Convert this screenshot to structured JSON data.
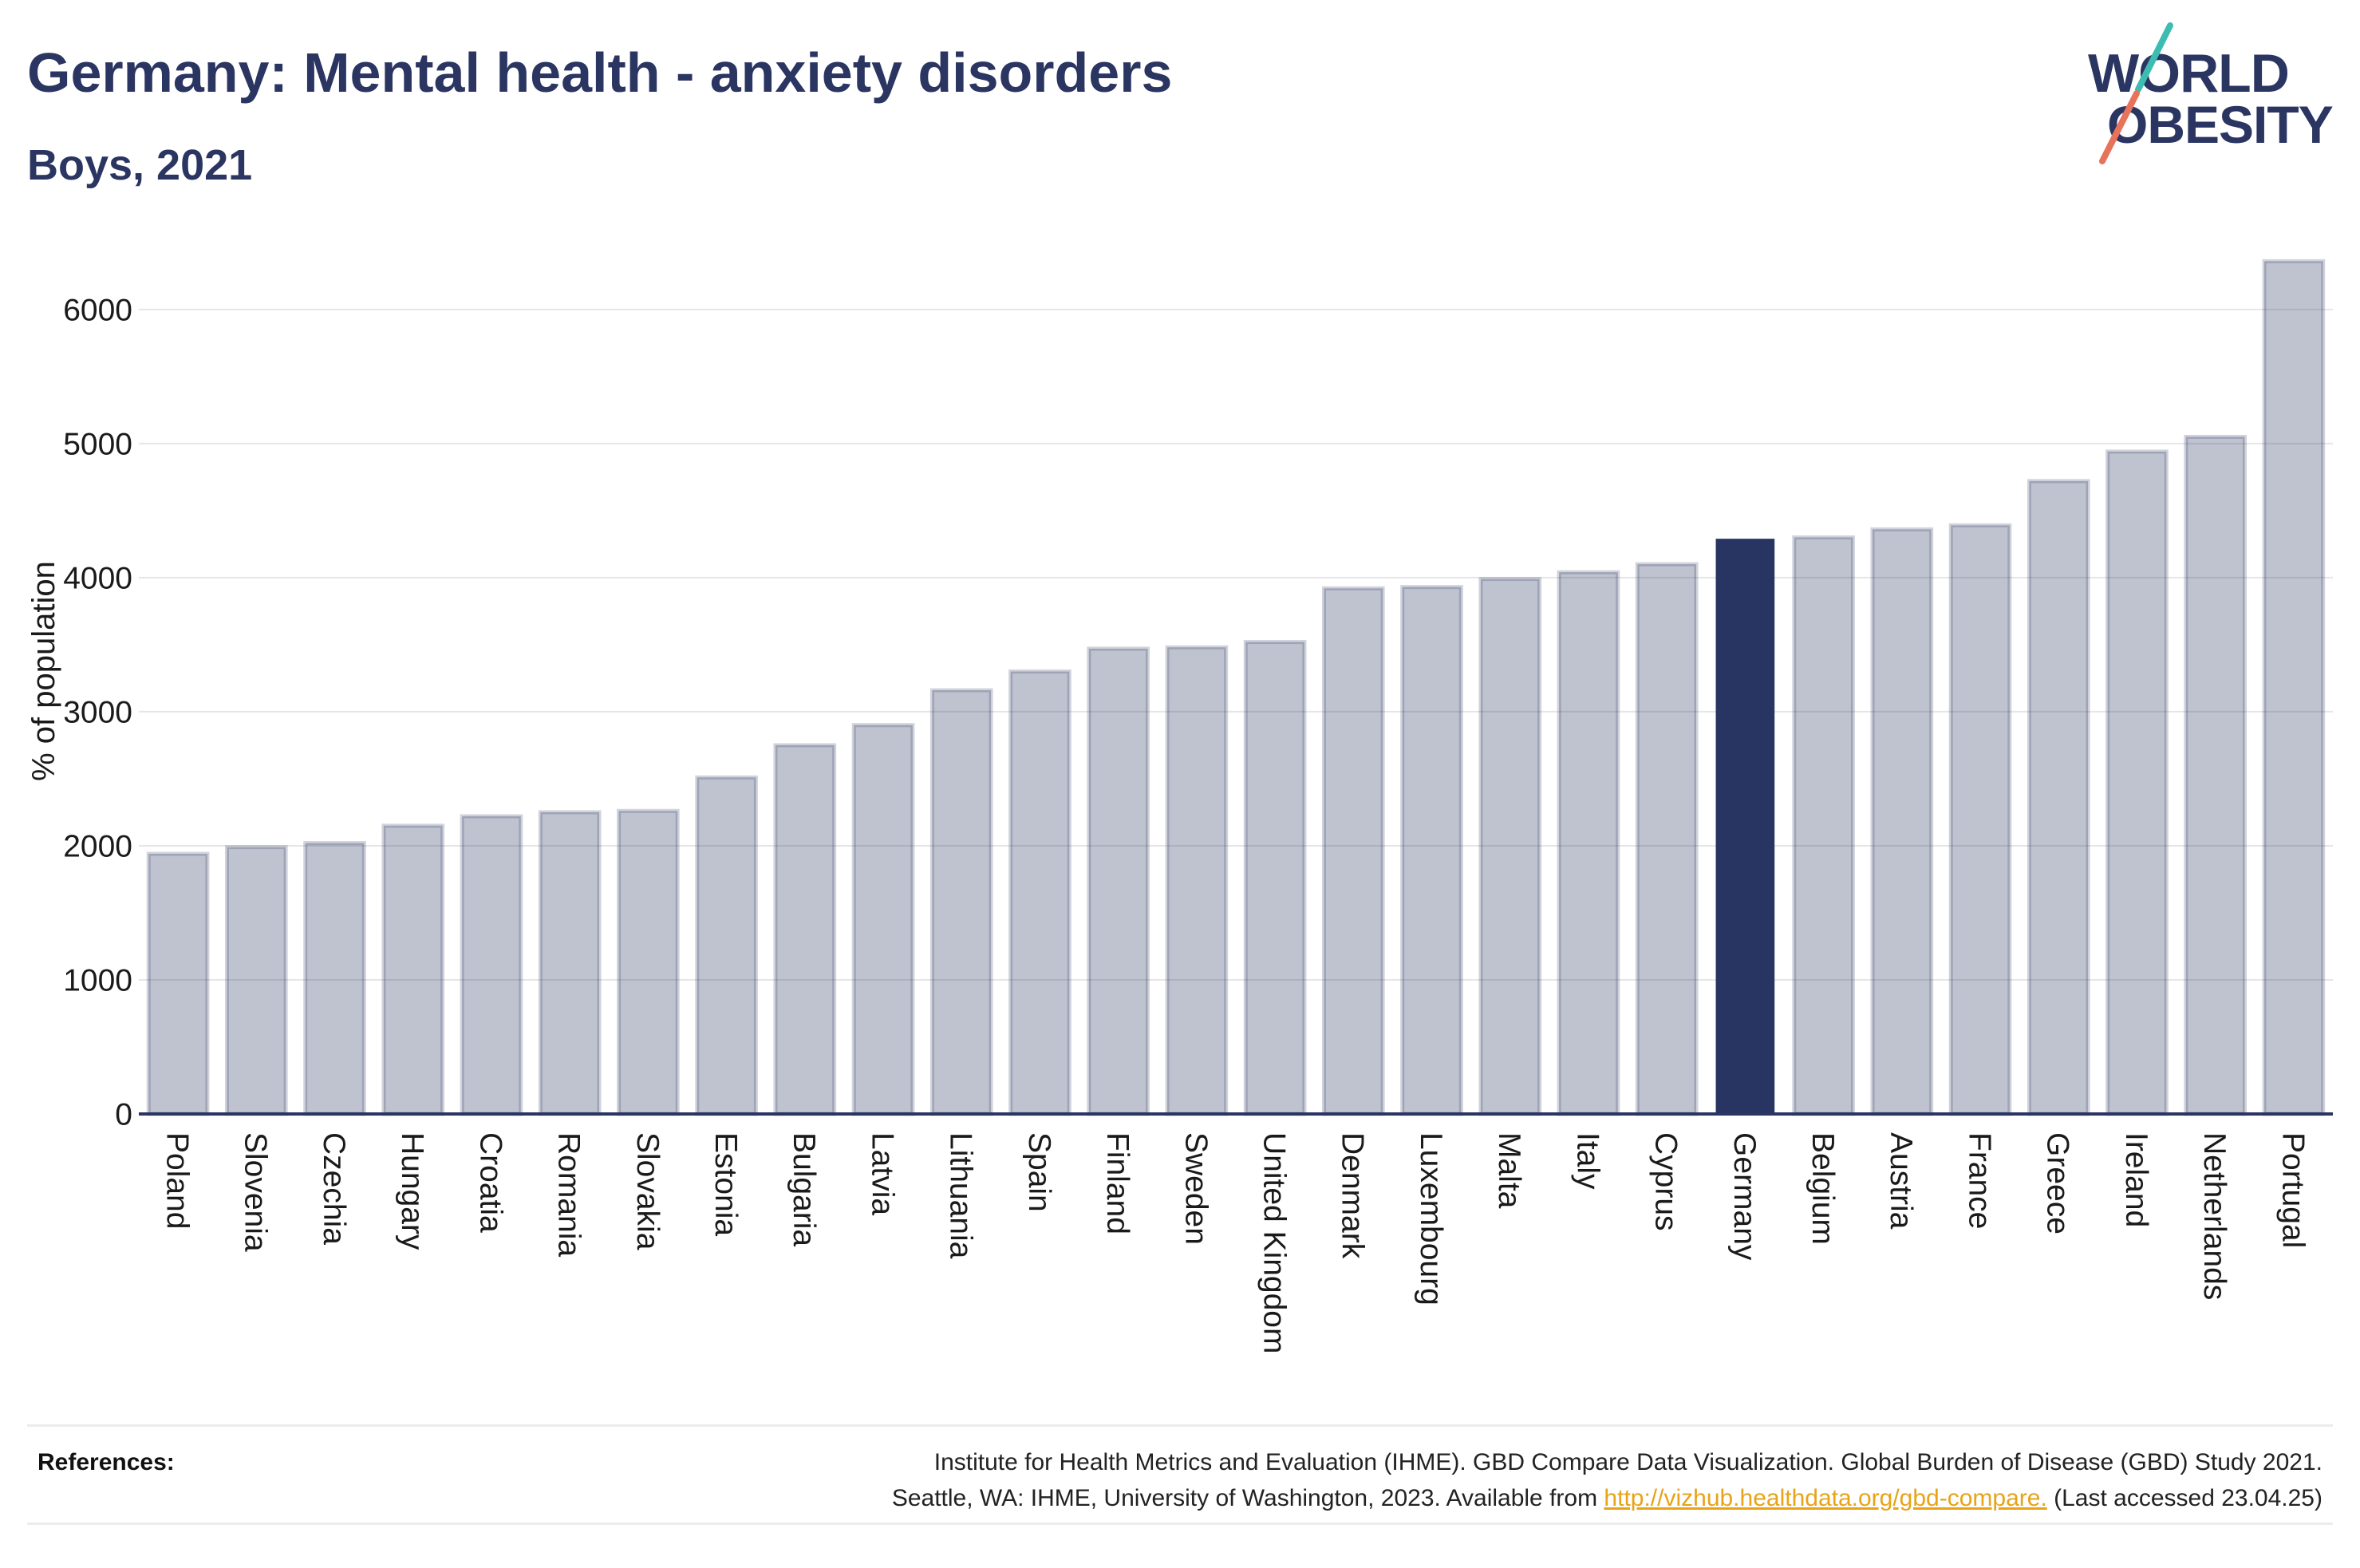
{
  "chart_data": {
    "type": "bar",
    "title": "Germany: Mental health - anxiety disorders",
    "subtitle": "Boys, 2021",
    "ylabel": "% of population",
    "categories": [
      "Poland",
      "Slovenia",
      "Czechia",
      "Hungary",
      "Croatia",
      "Romania",
      "Slovakia",
      "Estonia",
      "Bulgaria",
      "Latvia",
      "Lithuania",
      "Spain",
      "Finland",
      "Sweden",
      "United Kingdom",
      "Denmark",
      "Luxembourg",
      "Malta",
      "Italy",
      "Cyprus",
      "Germany",
      "Belgium",
      "Austria",
      "France",
      "Greece",
      "Ireland",
      "Netherlands",
      "Portugal"
    ],
    "values": [
      1940,
      1990,
      2020,
      2150,
      2220,
      2250,
      2260,
      2510,
      2750,
      2900,
      3160,
      3300,
      3470,
      3480,
      3520,
      3920,
      3930,
      3990,
      4040,
      4100,
      4290,
      4300,
      4360,
      4390,
      4720,
      4940,
      5050,
      6360
    ],
    "highlight": "Germany",
    "yticks": [
      0,
      1000,
      2000,
      3000,
      4000,
      5000,
      6000
    ],
    "ylim": [
      0,
      6600
    ],
    "grid": true
  },
  "logo": {
    "line1": "WORLD",
    "line2": "OBESITY"
  },
  "references": {
    "label": "References:",
    "line1": "Institute for Health Metrics and Evaluation (IHME). GBD Compare Data Visualization. Global Burden of Disease (GBD) Study 2021.",
    "line2_prefix": "Seattle, WA: IHME, University of Washington, 2023. Available from ",
    "link": "http://vizhub.healthdata.org/gbd-compare.",
    "line2_suffix": " (Last accessed 23.04.25)"
  },
  "colors": {
    "title": "#2b3561",
    "bar": "#2b3561",
    "highlight": "#283462",
    "grid": "#e6e6e6",
    "axis": "#2b3561",
    "link": "#e8a317",
    "logo_teal": "#3dbdb1",
    "logo_coral": "#e8735b"
  }
}
